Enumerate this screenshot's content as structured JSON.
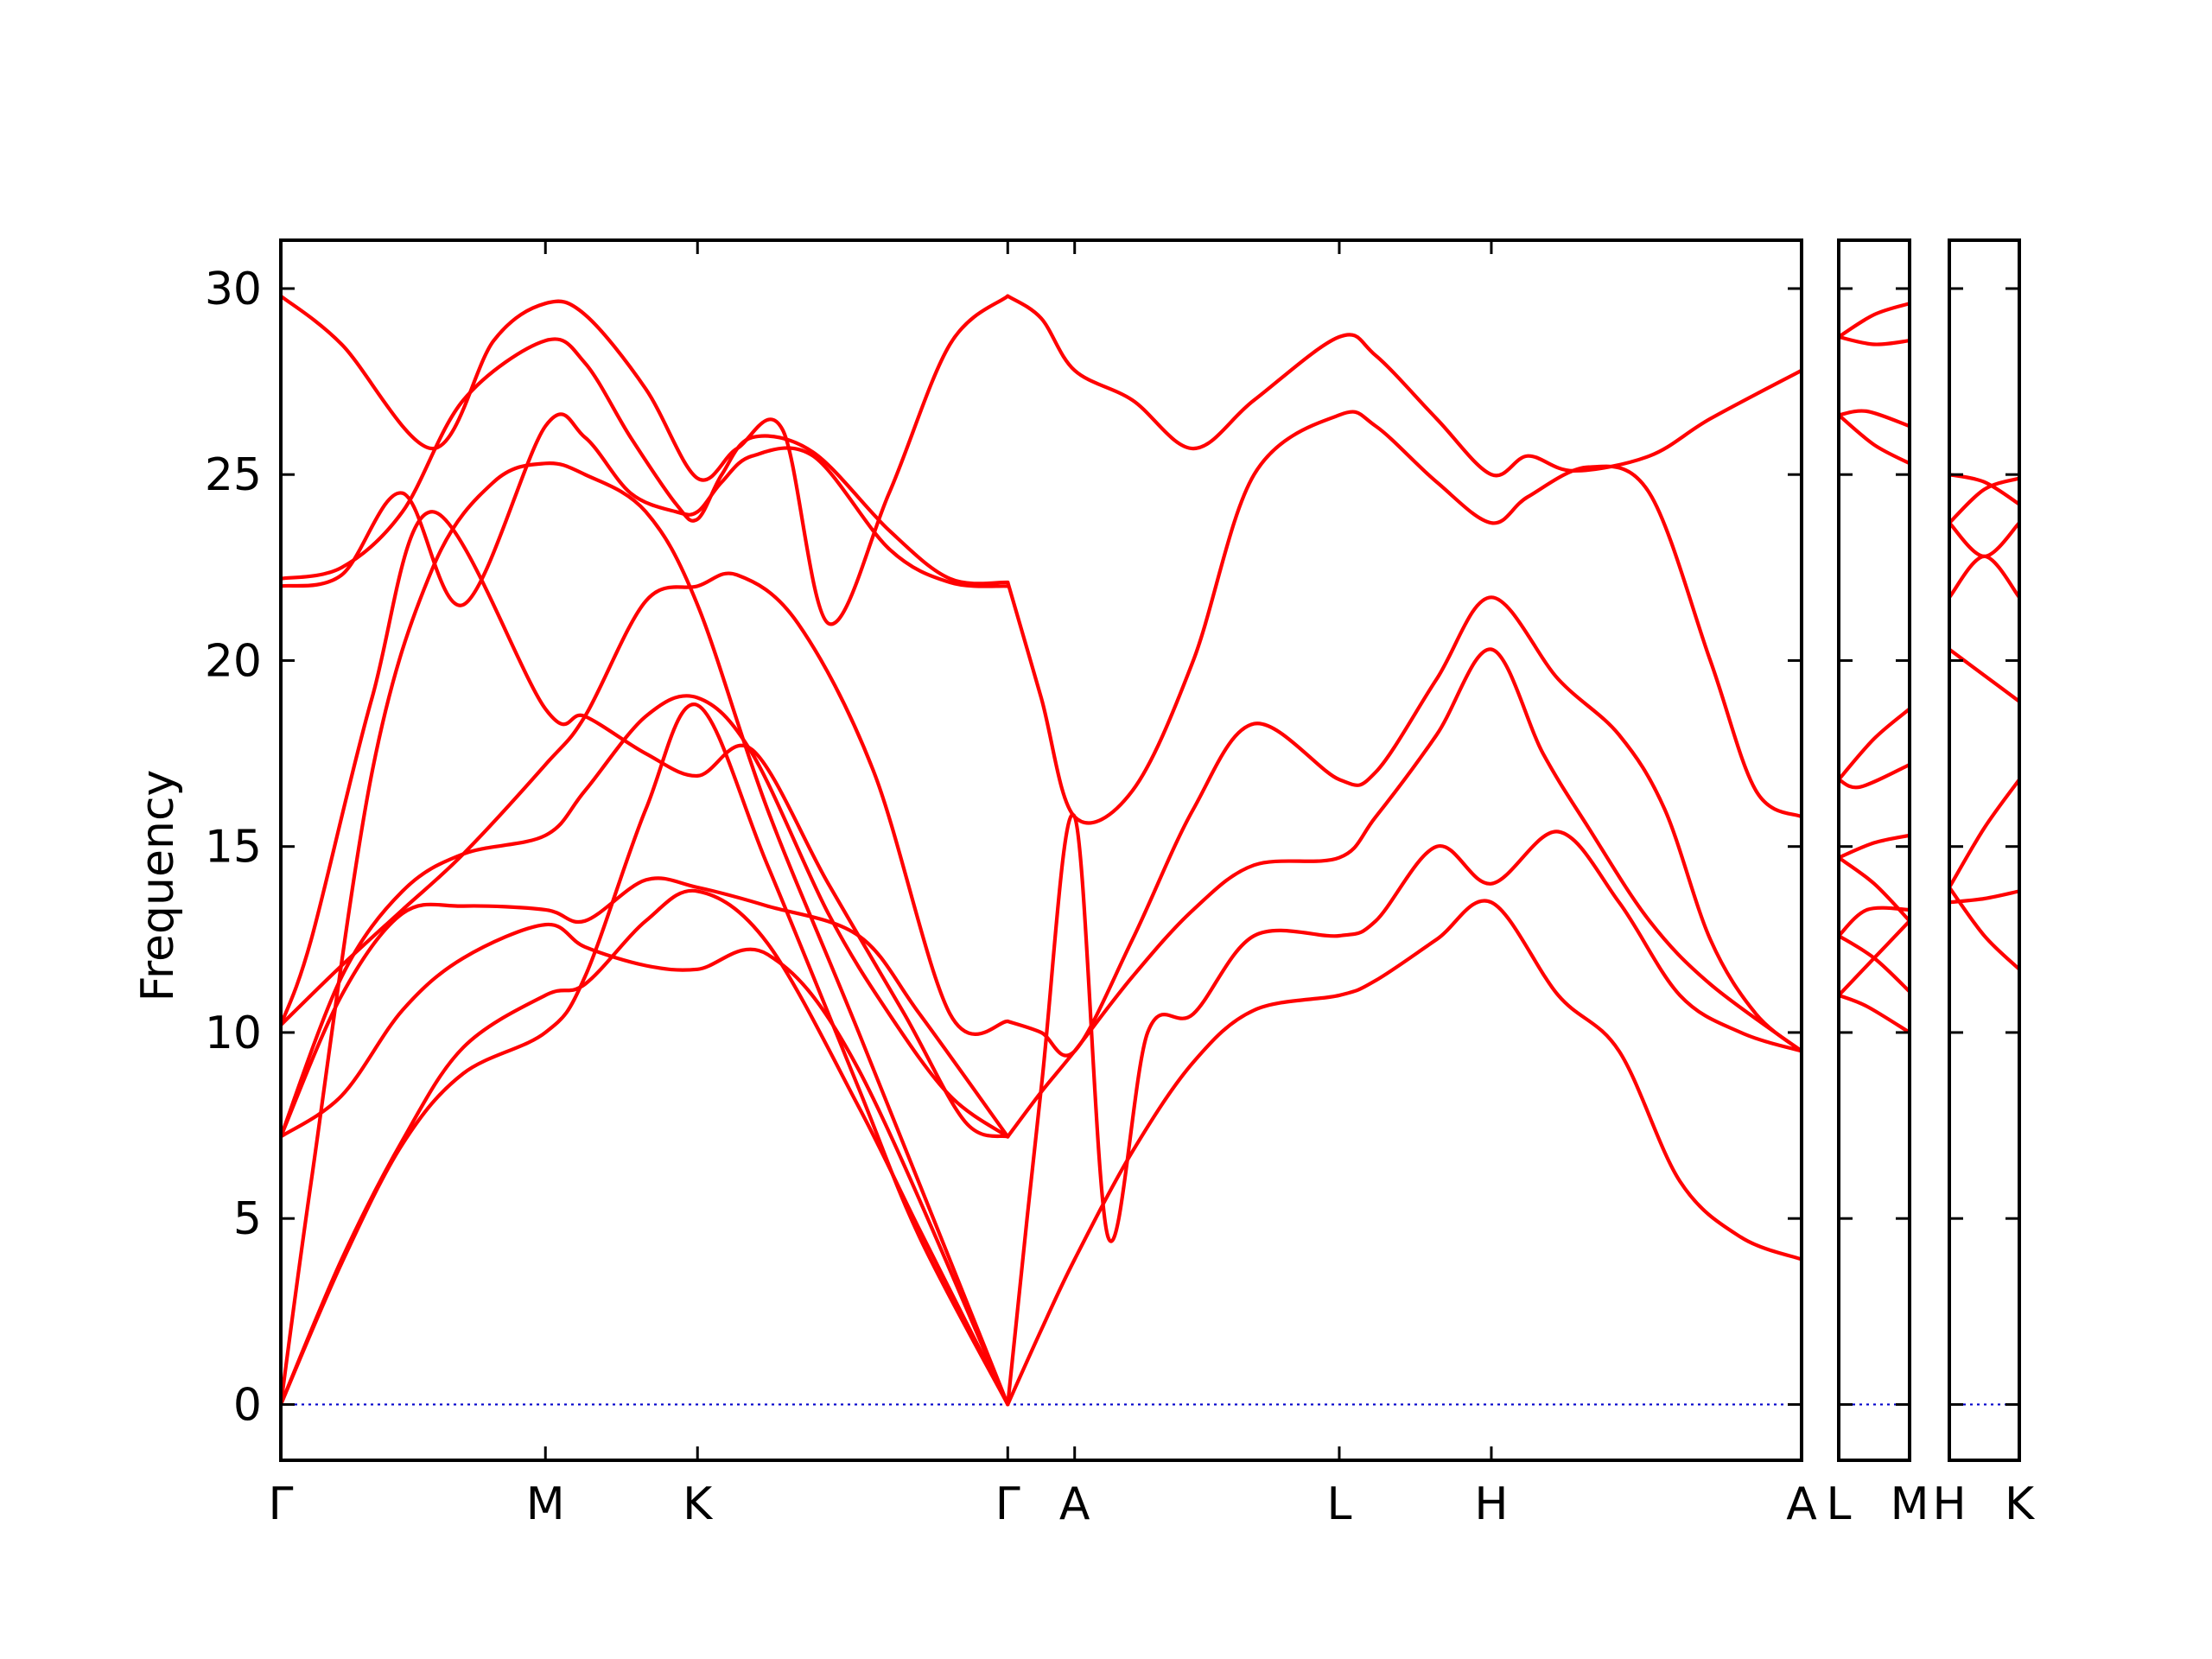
{
  "chart_data": {
    "type": "line",
    "title": "",
    "ylabel": "Frequency",
    "xlabel": "",
    "ylim": [
      -1.5,
      31.3
    ],
    "yticks": [
      0,
      5,
      10,
      15,
      20,
      25,
      30
    ],
    "grid": false,
    "legend": "none",
    "band_color": "#ff0000",
    "zero_line_color": "#0000cc",
    "panels": [
      {
        "xrange": [
          0,
          5.0
        ],
        "ticks": [
          {
            "label": "Γ",
            "x": 0.0
          },
          {
            "label": "M",
            "x": 0.87
          },
          {
            "label": "K",
            "x": 1.37
          },
          {
            "label": "Γ",
            "x": 2.39
          },
          {
            "label": "A",
            "x": 2.61
          },
          {
            "label": "L",
            "x": 3.48
          },
          {
            "label": "H",
            "x": 3.98
          },
          {
            "label": "A",
            "x": 5.0
          }
        ],
        "series": [
          {
            "x": [
              0,
              0.2,
              0.4,
              0.6,
              0.87,
              1.0,
              1.2,
              1.37,
              1.6,
              1.9,
              2.1,
              2.39
            ],
            "values": [
              0,
              3.8,
              7.0,
              8.9,
              10.0,
              11.5,
              16.0,
              18.8,
              14.5,
              8.5,
              4.5,
              0
            ]
          },
          {
            "x": [
              0,
              0.2,
              0.4,
              0.6,
              0.87,
              1.0,
              1.2,
              1.37,
              1.6,
              1.9,
              2.1,
              2.39
            ],
            "values": [
              0,
              3.9,
              7.1,
              9.6,
              11.0,
              11.3,
              13.0,
              13.8,
              12.4,
              8.0,
              4.7,
              0
            ]
          },
          {
            "x": [
              0,
              0.1,
              0.3,
              0.5,
              0.7,
              0.87,
              1.0,
              1.2,
              1.37,
              1.6,
              1.9,
              2.39
            ],
            "values": [
              0,
              6.0,
              17.0,
              22.5,
              24.8,
              25.3,
              25.0,
              24.0,
              21.5,
              16.0,
              10.0,
              0
            ]
          },
          {
            "x": [
              0,
              0.2,
              0.4,
              0.6,
              0.87,
              1.0,
              1.2,
              1.37,
              1.6,
              1.9,
              2.39
            ],
            "values": [
              7.2,
              8.3,
              10.6,
              12.0,
              12.9,
              12.3,
              11.8,
              11.7,
              12.1,
              9.0,
              0
            ]
          },
          {
            "x": [
              0,
              0.2,
              0.4,
              0.6,
              0.87,
              1.0,
              1.2,
              1.37,
              1.6,
              1.9,
              2.1,
              2.39
            ],
            "values": [
              7.2,
              11.0,
              13.2,
              13.4,
              13.3,
              13.0,
              14.1,
              13.9,
              13.4,
              12.6,
              10.5,
              7.2
            ]
          },
          {
            "x": [
              0,
              0.2,
              0.4,
              0.6,
              0.87,
              1.0,
              1.2,
              1.37,
              1.55,
              1.8,
              2.0,
              2.2,
              2.39
            ],
            "values": [
              7.2,
              11.5,
              13.8,
              14.8,
              15.3,
              16.5,
              18.5,
              19.0,
              17.5,
              13.2,
              10.5,
              8.3,
              7.2
            ]
          },
          {
            "x": [
              0,
              0.2,
              0.4,
              0.6,
              0.87,
              1.0,
              1.2,
              1.37,
              1.5,
              1.7,
              1.95,
              2.2,
              2.39
            ],
            "values": [
              10.2,
              11.8,
              13.3,
              14.8,
              17.2,
              18.5,
              21.6,
              22.0,
              22.3,
              21.0,
              17.0,
              10.5,
              10.3
            ]
          },
          {
            "x": [
              0,
              0.1,
              0.3,
              0.5,
              0.87,
              1.0,
              1.2,
              1.37,
              1.55,
              1.8,
              2.05,
              2.25,
              2.39
            ],
            "values": [
              10.2,
              12.5,
              19.0,
              24.0,
              18.7,
              18.5,
              17.5,
              16.9,
              17.6,
              14.0,
              10.5,
              7.6,
              7.2
            ]
          },
          {
            "x": [
              0,
              0.2,
              0.4,
              0.6,
              0.87,
              1.0,
              1.15,
              1.3,
              1.37,
              1.45,
              1.55,
              1.75,
              2.0,
              2.2,
              2.39
            ],
            "values": [
              22.0,
              22.3,
              24.5,
              21.5,
              26.3,
              26.0,
              24.5,
              24.0,
              24.0,
              24.8,
              25.5,
              25.5,
              23.0,
              22.1,
              22.0
            ]
          },
          {
            "x": [
              0,
              0.2,
              0.4,
              0.6,
              0.87,
              1.0,
              1.15,
              1.3,
              1.37,
              1.45,
              1.55,
              1.75,
              2.0,
              2.2,
              2.39
            ],
            "values": [
              22.2,
              22.5,
              24.0,
              27.0,
              28.6,
              28.0,
              26.0,
              24.2,
              23.8,
              25.0,
              26.0,
              25.6,
              23.5,
              22.2,
              22.1
            ]
          },
          {
            "x": [
              0,
              0.2,
              0.5,
              0.7,
              0.87,
              1.0,
              1.2,
              1.37,
              1.5,
              1.65,
              1.8,
              2.0,
              2.2,
              2.39
            ],
            "values": [
              29.8,
              28.5,
              25.7,
              28.6,
              29.6,
              29.3,
              27.3,
              24.9,
              25.7,
              26.2,
              21.0,
              24.5,
              28.5,
              29.8
            ]
          },
          {
            "x": [
              2.39,
              2.5,
              2.61,
              2.8,
              3.0,
              3.2,
              3.48,
              3.6,
              3.8,
              3.98,
              4.2,
              4.4,
              4.6,
              4.8,
              5.0
            ],
            "values": [
              0,
              2.0,
              3.9,
              6.8,
              9.2,
              10.6,
              11.0,
              11.4,
              12.5,
              13.5,
              11.0,
              9.5,
              6.0,
              4.5,
              3.9
            ]
          },
          {
            "x": [
              2.39,
              2.5,
              2.61,
              2.72,
              2.85,
              3.0,
              3.2,
              3.48,
              3.6,
              3.8,
              3.98,
              4.2,
              4.4,
              4.6,
              4.8,
              5.0
            ],
            "values": [
              0,
              8.5,
              15.8,
              4.5,
              10.0,
              10.5,
              12.6,
              12.6,
              13.0,
              15.0,
              14.0,
              15.4,
              13.5,
              11.0,
              10.0,
              9.5
            ]
          },
          {
            "x": [
              2.39,
              2.5,
              2.61,
              2.8,
              3.0,
              3.2,
              3.48,
              3.6,
              3.8,
              3.98,
              4.15,
              4.3,
              4.5,
              4.7,
              5.0
            ],
            "values": [
              7.2,
              8.4,
              9.5,
              11.5,
              13.3,
              14.5,
              14.7,
              15.8,
              18.0,
              20.3,
              17.5,
              15.5,
              13.0,
              11.3,
              9.5
            ]
          },
          {
            "x": [
              2.39,
              2.5,
              2.61,
              2.8,
              3.0,
              3.2,
              3.48,
              3.6,
              3.8,
              3.98,
              4.2,
              4.4,
              4.55,
              4.7,
              4.85,
              5.0
            ],
            "values": [
              10.3,
              10.0,
              9.5,
              12.5,
              16.0,
              18.3,
              16.8,
              17.0,
              19.5,
              21.7,
              19.5,
              18.0,
              16.0,
              12.5,
              10.5,
              9.5
            ]
          },
          {
            "x": [
              2.39,
              2.5,
              2.61,
              2.8,
              3.0,
              3.2,
              3.48,
              3.6,
              3.8,
              3.98,
              4.1,
              4.3,
              4.5,
              4.7,
              4.85,
              5.0
            ],
            "values": [
              22.1,
              19.0,
              15.8,
              16.5,
              20.0,
              25.0,
              26.6,
              26.3,
              24.8,
              23.7,
              24.4,
              25.2,
              24.5,
              20.0,
              16.5,
              15.8
            ]
          },
          {
            "x": [
              2.39,
              2.5,
              2.61,
              2.8,
              3.0,
              3.2,
              3.48,
              3.6,
              3.8,
              3.98,
              4.1,
              4.25,
              4.5,
              4.7,
              5.0
            ],
            "values": [
              29.8,
              29.2,
              27.8,
              27.0,
              25.7,
              27.0,
              28.7,
              28.2,
              26.5,
              25.0,
              25.5,
              25.1,
              25.5,
              26.5,
              27.8
            ]
          }
        ]
      },
      {
        "xrange": [
          0,
          0.5
        ],
        "ticks": [
          {
            "label": "L",
            "x": 0.0
          },
          {
            "label": "M",
            "x": 0.5
          }
        ],
        "series": [
          {
            "x": [
              0,
              0.25,
              0.5
            ],
            "values": [
              11.0,
              12.0,
              13.0
            ]
          },
          {
            "x": [
              0,
              0.2,
              0.5
            ],
            "values": [
              11.0,
              10.7,
              10.0
            ]
          },
          {
            "x": [
              0,
              0.2,
              0.5
            ],
            "values": [
              12.6,
              13.3,
              13.3
            ]
          },
          {
            "x": [
              0,
              0.25,
              0.5
            ],
            "values": [
              12.6,
              12.0,
              11.1
            ]
          },
          {
            "x": [
              0,
              0.25,
              0.5
            ],
            "values": [
              14.7,
              15.1,
              15.3
            ]
          },
          {
            "x": [
              0,
              0.25,
              0.5
            ],
            "values": [
              14.7,
              14.0,
              13.0
            ]
          },
          {
            "x": [
              0,
              0.25,
              0.5
            ],
            "values": [
              16.8,
              17.9,
              18.7
            ]
          },
          {
            "x": [
              0,
              0.15,
              0.5
            ],
            "values": [
              16.8,
              16.6,
              17.2
            ]
          },
          {
            "x": [
              0,
              0.2,
              0.5
            ],
            "values": [
              26.6,
              26.7,
              26.3
            ]
          },
          {
            "x": [
              0,
              0.25,
              0.5
            ],
            "values": [
              26.6,
              25.8,
              25.3
            ]
          },
          {
            "x": [
              0,
              0.25,
              0.5
            ],
            "values": [
              28.7,
              29.3,
              29.6
            ]
          },
          {
            "x": [
              0,
              0.25,
              0.5
            ],
            "values": [
              28.7,
              28.5,
              28.6
            ]
          }
        ]
      },
      {
        "xrange": [
          0,
          0.5
        ],
        "ticks": [
          {
            "label": "H",
            "x": 0.0
          },
          {
            "label": "K",
            "x": 0.5
          }
        ],
        "series": [
          {
            "x": [
              0,
              0.25,
              0.5
            ],
            "values": [
              13.5,
              13.6,
              13.8
            ]
          },
          {
            "x": [
              0,
              0.25,
              0.5
            ],
            "values": [
              13.9,
              12.6,
              11.7
            ]
          },
          {
            "x": [
              0,
              0.25,
              0.5
            ],
            "values": [
              13.9,
              15.5,
              16.8
            ]
          },
          {
            "x": [
              0,
              0.25,
              0.5
            ],
            "values": [
              20.3,
              19.6,
              18.9
            ]
          },
          {
            "x": [
              0,
              0.25,
              0.5
            ],
            "values": [
              21.7,
              22.8,
              21.7
            ]
          },
          {
            "x": [
              0,
              0.25,
              0.5
            ],
            "values": [
              23.7,
              22.8,
              23.7
            ]
          },
          {
            "x": [
              0,
              0.25,
              0.5
            ],
            "values": [
              23.7,
              24.6,
              24.9
            ]
          },
          {
            "x": [
              0,
              0.25,
              0.5
            ],
            "values": [
              25.0,
              24.8,
              24.2
            ]
          }
        ]
      }
    ]
  }
}
